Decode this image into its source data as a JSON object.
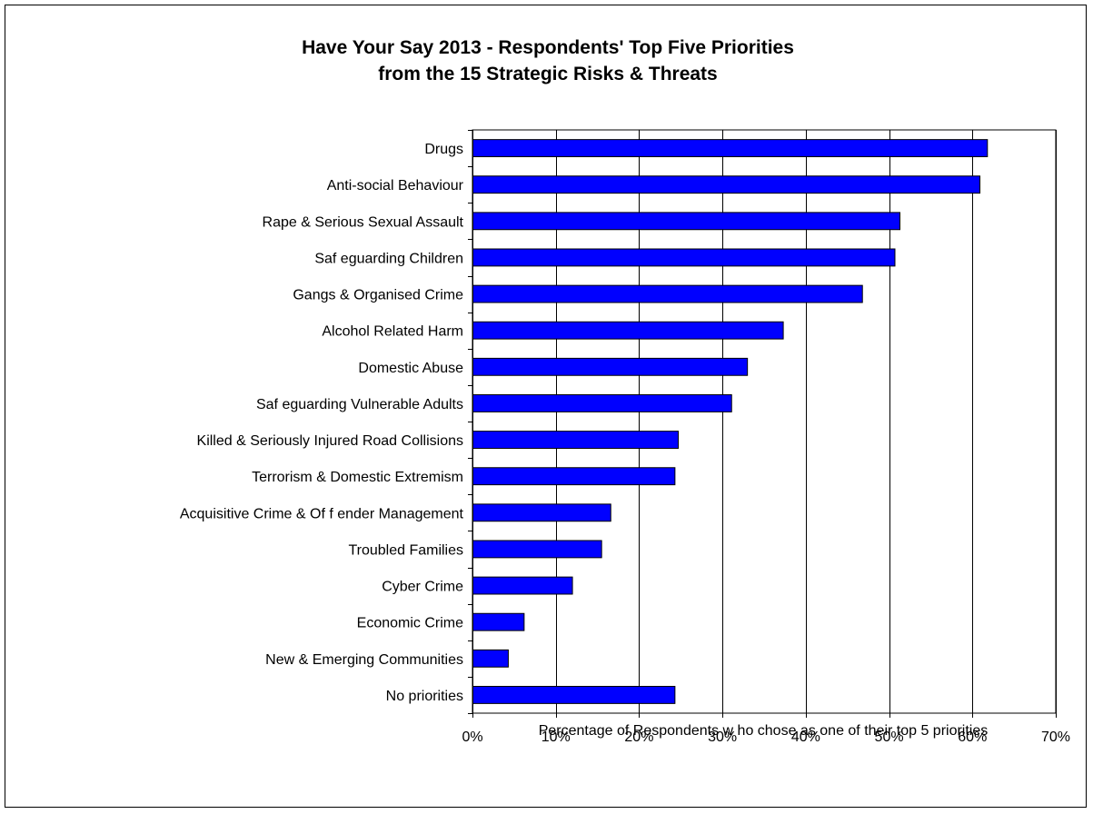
{
  "chart_data": {
    "type": "bar",
    "orientation": "horizontal",
    "title": "Have Your Say 2013 - Respondents' Top Five Priorities from the 15 Strategic Risks & Threats",
    "title_lines": [
      "Have Your Say 2013 - Respondents' Top Five Priorities",
      "from the 15 Strategic Risks & Threats"
    ],
    "xlabel": "Percentage of Respondents w ho chose as one of their top 5 priorities",
    "ylabel": "",
    "xlim": [
      0,
      70
    ],
    "x_unit": "%",
    "xticks": [
      0,
      10,
      20,
      30,
      40,
      50,
      60,
      70
    ],
    "xtick_labels": [
      "0%",
      "10%",
      "20%",
      "30%",
      "40%",
      "50%",
      "60%",
      "70%"
    ],
    "grid": "vertical",
    "legend": "none",
    "categories": [
      "Drugs",
      "Anti-social Behaviour",
      "Rape & Serious Sexual Assault",
      "Saf eguarding Children",
      "Gangs & Organised Crime",
      "Alcohol Related Harm",
      "Domestic Abuse",
      "Saf eguarding Vulnerable Adults",
      "Killed & Seriously Injured Road Collisions",
      "Terrorism & Domestic Extremism",
      "Acquisitive Crime & Of f ender Management",
      "Troubled Families",
      "Cyber Crime",
      "Economic Crime",
      "New & Emerging Communities",
      "No priorities"
    ],
    "values": [
      61.8,
      60.9,
      51.3,
      50.7,
      46.8,
      37.3,
      33.0,
      31.1,
      24.7,
      24.3,
      16.6,
      15.5,
      12.0,
      6.2,
      4.3,
      24.3
    ],
    "bar_color": "#0000ff",
    "bar_edge_color": "#000000"
  }
}
